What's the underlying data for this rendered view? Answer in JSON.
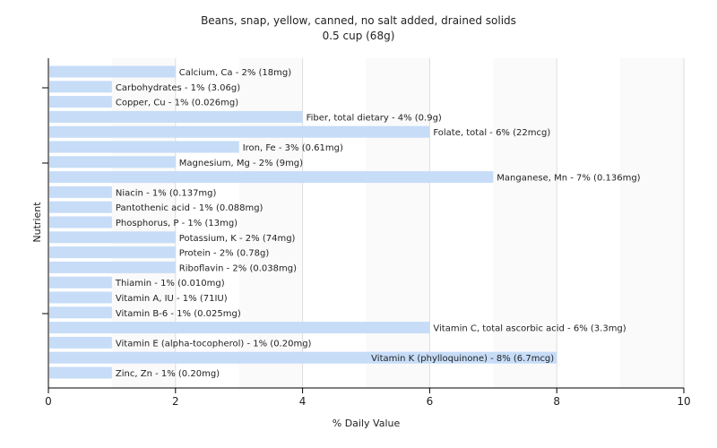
{
  "chart_data": {
    "type": "bar",
    "orientation": "horizontal",
    "title": "Beans, snap, yellow, canned, no salt added, drained solids",
    "subtitle": "0.5 cup (68g)",
    "xlabel": "% Daily Value",
    "ylabel": "Nutrient",
    "xlim": [
      0,
      10
    ],
    "xticks": [
      "0",
      "2",
      "4",
      "6",
      "8",
      "10"
    ],
    "grid": true,
    "bar_color": "#c6dcf7",
    "categories": [
      "Calcium, Ca",
      "Carbohydrates",
      "Copper, Cu",
      "Fiber, total dietary",
      "Folate, total",
      "Iron, Fe",
      "Magnesium, Mg",
      "Manganese, Mn",
      "Niacin",
      "Pantothenic acid",
      "Phosphorus, P",
      "Potassium, K",
      "Protein",
      "Riboflavin",
      "Thiamin",
      "Vitamin A, IU",
      "Vitamin B-6",
      "Vitamin C, total ascorbic acid",
      "Vitamin E (alpha-tocopherol)",
      "Vitamin K (phylloquinone)",
      "Zinc, Zn"
    ],
    "values": [
      2,
      1,
      1,
      4,
      6,
      3,
      2,
      7,
      1,
      1,
      1,
      2,
      2,
      2,
      1,
      1,
      1,
      6,
      1,
      8,
      1
    ],
    "labels": [
      "Calcium, Ca - 2% (18mg)",
      "Carbohydrates - 1% (3.06g)",
      "Copper, Cu - 1% (0.026mg)",
      "Fiber, total dietary - 4% (0.9g)",
      "Folate, total - 6% (22mcg)",
      "Iron, Fe - 3% (0.61mg)",
      "Magnesium, Mg - 2% (9mg)",
      "Manganese, Mn - 7% (0.136mg)",
      "Niacin - 1% (0.137mg)",
      "Pantothenic acid - 1% (0.088mg)",
      "Phosphorus, P - 1% (13mg)",
      "Potassium, K - 2% (74mg)",
      "Protein - 2% (0.78g)",
      "Riboflavin - 2% (0.038mg)",
      "Thiamin - 1% (0.010mg)",
      "Vitamin A, IU - 1% (71IU)",
      "Vitamin B-6 - 1% (0.025mg)",
      "Vitamin C, total ascorbic acid - 6% (3.3mg)",
      "Vitamin E (alpha-tocopherol) - 1% (0.20mg)",
      "Vitamin K (phylloquinone) - 8% (6.7mcg)",
      "Zinc, Zn - 1% (0.20mg)"
    ]
  }
}
